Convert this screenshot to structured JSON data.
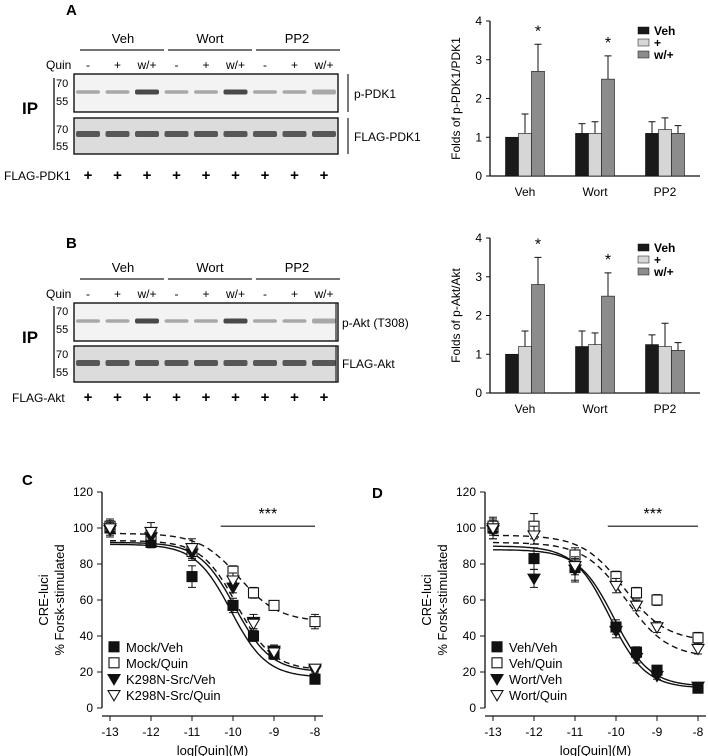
{
  "panels": {
    "A": {
      "label": "A",
      "blot": {
        "treatments": [
          "Veh",
          "Wort",
          "PP2"
        ],
        "quin_label": "Quin",
        "quin_states": [
          "-",
          "+",
          "w/+",
          "-",
          "+",
          "w/+",
          "-",
          "+",
          "w/+"
        ],
        "ip_label": "IP",
        "top_markers": [
          "70",
          "55"
        ],
        "bottom_markers": [
          "70",
          "55"
        ],
        "top_band_label": "p-PDK1",
        "bottom_band_label": "FLAG-PDK1",
        "transfection_label": "FLAG-PDK1",
        "plus_sign": "+"
      }
    },
    "B": {
      "label": "B",
      "blot": {
        "treatments": [
          "Veh",
          "Wort",
          "PP2"
        ],
        "quin_label": "Quin",
        "quin_states": [
          "-",
          "+",
          "w/+",
          "-",
          "+",
          "w/+",
          "-",
          "+",
          "w/+"
        ],
        "ip_label": "IP",
        "top_markers": [
          "70",
          "55"
        ],
        "bottom_markers": [
          "70",
          "55"
        ],
        "top_band_label": "p-Akt (T308)",
        "bottom_band_label": "FLAG-Akt",
        "transfection_label": "FLAG-Akt",
        "plus_sign": "+"
      }
    },
    "C": {
      "label": "C"
    },
    "D": {
      "label": "D"
    }
  },
  "chart_data": [
    {
      "id": "A-bar",
      "type": "bar",
      "ylabel": "Folds of p-PDK1/PDK1",
      "ylim": [
        0,
        4
      ],
      "yticks": [
        "0",
        "1",
        "2",
        "3",
        "4"
      ],
      "categories": [
        "Veh",
        "Wort",
        "PP2"
      ],
      "legend": [
        "Veh",
        "+",
        "w/+"
      ],
      "legend_position": "top-right",
      "series_colors": [
        "#1a1a1a",
        "#d6d6d6",
        "#8c8c8c"
      ],
      "values": [
        [
          1.0,
          1.1,
          2.7
        ],
        [
          1.1,
          1.1,
          2.5
        ],
        [
          1.1,
          1.2,
          1.1
        ]
      ],
      "errors": [
        [
          0,
          0.5,
          0.7
        ],
        [
          0.25,
          0.3,
          0.6
        ],
        [
          0.3,
          0.3,
          0.2
        ]
      ],
      "annotations": [
        {
          "category": "Veh",
          "bar": 2,
          "text": "*"
        },
        {
          "category": "Wort",
          "bar": 2,
          "text": "*"
        }
      ]
    },
    {
      "id": "B-bar",
      "type": "bar",
      "ylabel": "Folds of p-Akt/Akt",
      "ylim": [
        0,
        4
      ],
      "yticks": [
        "0",
        "1",
        "2",
        "3",
        "4"
      ],
      "categories": [
        "Veh",
        "Wort",
        "PP2"
      ],
      "legend": [
        "Veh",
        "+",
        "w/+"
      ],
      "legend_position": "top-right",
      "series_colors": [
        "#1a1a1a",
        "#d6d6d6",
        "#8c8c8c"
      ],
      "values": [
        [
          1.0,
          1.2,
          2.8
        ],
        [
          1.2,
          1.25,
          2.5
        ],
        [
          1.25,
          1.2,
          1.1
        ]
      ],
      "errors": [
        [
          0,
          0.4,
          0.7
        ],
        [
          0.4,
          0.3,
          0.6
        ],
        [
          0.25,
          0.6,
          0.2
        ]
      ],
      "annotations": [
        {
          "category": "Veh",
          "bar": 2,
          "text": "*"
        },
        {
          "category": "Wort",
          "bar": 2,
          "text": "*"
        }
      ]
    },
    {
      "id": "C-dose",
      "type": "scatter",
      "ylabel_line1": "CRE-luci",
      "ylabel_line2": "% Forsk-stimulated",
      "xlabel": "log[Quin](M)",
      "xlim": [
        -13,
        -8
      ],
      "xticks": [
        "-13",
        "-12",
        "-11",
        "-10",
        "-9",
        "-8"
      ],
      "ylim": [
        0,
        120
      ],
      "yticks": [
        "0",
        "20",
        "40",
        "60",
        "80",
        "100",
        "120"
      ],
      "significance": {
        "text": "***",
        "from": -10.3,
        "to": -8,
        "y": 107
      },
      "legend_position": "bottom-left",
      "series": [
        {
          "name": "Mock/Veh",
          "marker": "filled-square",
          "curve": "solid",
          "x": [
            -13,
            -12,
            -11,
            -10,
            -9.5,
            -9,
            -8
          ],
          "y": [
            100,
            92,
            73,
            57,
            40,
            30,
            16
          ],
          "err": [
            5,
            3,
            6,
            4,
            3,
            3,
            2
          ],
          "fit": {
            "top": 91,
            "bottom": 17,
            "ec50": -10.05,
            "hill": 1.0
          }
        },
        {
          "name": "Mock/Quin",
          "marker": "open-square",
          "curve": "dashed",
          "x": [
            -13,
            -12,
            -11,
            -10,
            -9.5,
            -9,
            -8
          ],
          "y": [
            101,
            96,
            87,
            76,
            64,
            57,
            48
          ],
          "err": [
            3,
            3,
            4,
            3,
            3,
            2,
            4
          ],
          "fit": {
            "top": 97,
            "bottom": 48,
            "ec50": -9.85,
            "hill": 0.9
          }
        },
        {
          "name": "K298N-Src/Veh",
          "marker": "filled-triangle-down",
          "curve": "solid",
          "x": [
            -13,
            -12,
            -11,
            -10,
            -9.5,
            -9,
            -8
          ],
          "y": [
            99,
            95,
            86,
            67,
            48,
            32,
            21
          ],
          "err": [
            4,
            3,
            4,
            3,
            4,
            3,
            2
          ],
          "fit": {
            "top": 92,
            "bottom": 20,
            "ec50": -9.95,
            "hill": 1.0
          }
        },
        {
          "name": "K298N-Src/Quin",
          "marker": "open-triangle-down",
          "curve": "dashed",
          "x": [
            -13,
            -12,
            -11,
            -10,
            -9.5,
            -9,
            -8
          ],
          "y": [
            100,
            98,
            89,
            71,
            47,
            31,
            22
          ],
          "err": [
            4,
            5,
            5,
            4,
            3,
            3,
            2
          ],
          "fit": {
            "top": 93,
            "bottom": 21,
            "ec50": -9.9,
            "hill": 1.0
          }
        }
      ]
    },
    {
      "id": "D-dose",
      "type": "scatter",
      "ylabel_line1": "CRE-luci",
      "ylabel_line2": "% Forsk-stimulated",
      "xlabel": "log[Quin](M)",
      "xlim": [
        -13,
        -8
      ],
      "xticks": [
        "-13",
        "-12",
        "-11",
        "-10",
        "-9",
        "-8"
      ],
      "ylim": [
        0,
        120
      ],
      "yticks": [
        "0",
        "20",
        "40",
        "60",
        "80",
        "100",
        "120"
      ],
      "significance": {
        "text": "***",
        "from": -10.2,
        "to": -8,
        "y": 107
      },
      "legend_position": "bottom-left",
      "series": [
        {
          "name": "Veh/Veh",
          "marker": "filled-square",
          "curve": "solid",
          "x": [
            -13,
            -12,
            -11,
            -10,
            -9.5,
            -9,
            -8
          ],
          "y": [
            100,
            83,
            78,
            45,
            31,
            21,
            11
          ],
          "err": [
            6,
            6,
            8,
            4,
            3,
            2,
            2
          ],
          "fit": {
            "top": 90,
            "bottom": 11,
            "ec50": -10.15,
            "hill": 1.0
          }
        },
        {
          "name": "Veh/Quin",
          "marker": "open-square",
          "curve": "dashed",
          "x": [
            -13,
            -12,
            -11,
            -10,
            -9.5,
            -9,
            -8
          ],
          "y": [
            101,
            101,
            85,
            73,
            64,
            60,
            39
          ],
          "err": [
            4,
            7,
            4,
            3,
            3,
            3,
            3
          ],
          "fit": {
            "top": 96,
            "bottom": 37,
            "ec50": -9.8,
            "hill": 0.85
          }
        },
        {
          "name": "Wort/Veh",
          "marker": "filled-triangle-down",
          "curve": "solid",
          "x": [
            -13,
            -12,
            -11,
            -10,
            -9.5,
            -9,
            -8
          ],
          "y": [
            99,
            72,
            77,
            43,
            28,
            18,
            12
          ],
          "err": [
            5,
            5,
            6,
            4,
            3,
            2,
            2
          ],
          "fit": {
            "top": 88,
            "bottom": 12,
            "ec50": -10.05,
            "hill": 1.0
          }
        },
        {
          "name": "Wort/Quin",
          "marker": "open-triangle-down",
          "curve": "dashed",
          "x": [
            -13,
            -12,
            -11,
            -10,
            -9.5,
            -9,
            -8
          ],
          "y": [
            100,
            96,
            79,
            68,
            57,
            45,
            33
          ],
          "err": [
            4,
            5,
            5,
            4,
            3,
            3,
            3
          ],
          "fit": {
            "top": 92,
            "bottom": 28,
            "ec50": -9.75,
            "hill": 0.85
          }
        }
      ]
    }
  ]
}
